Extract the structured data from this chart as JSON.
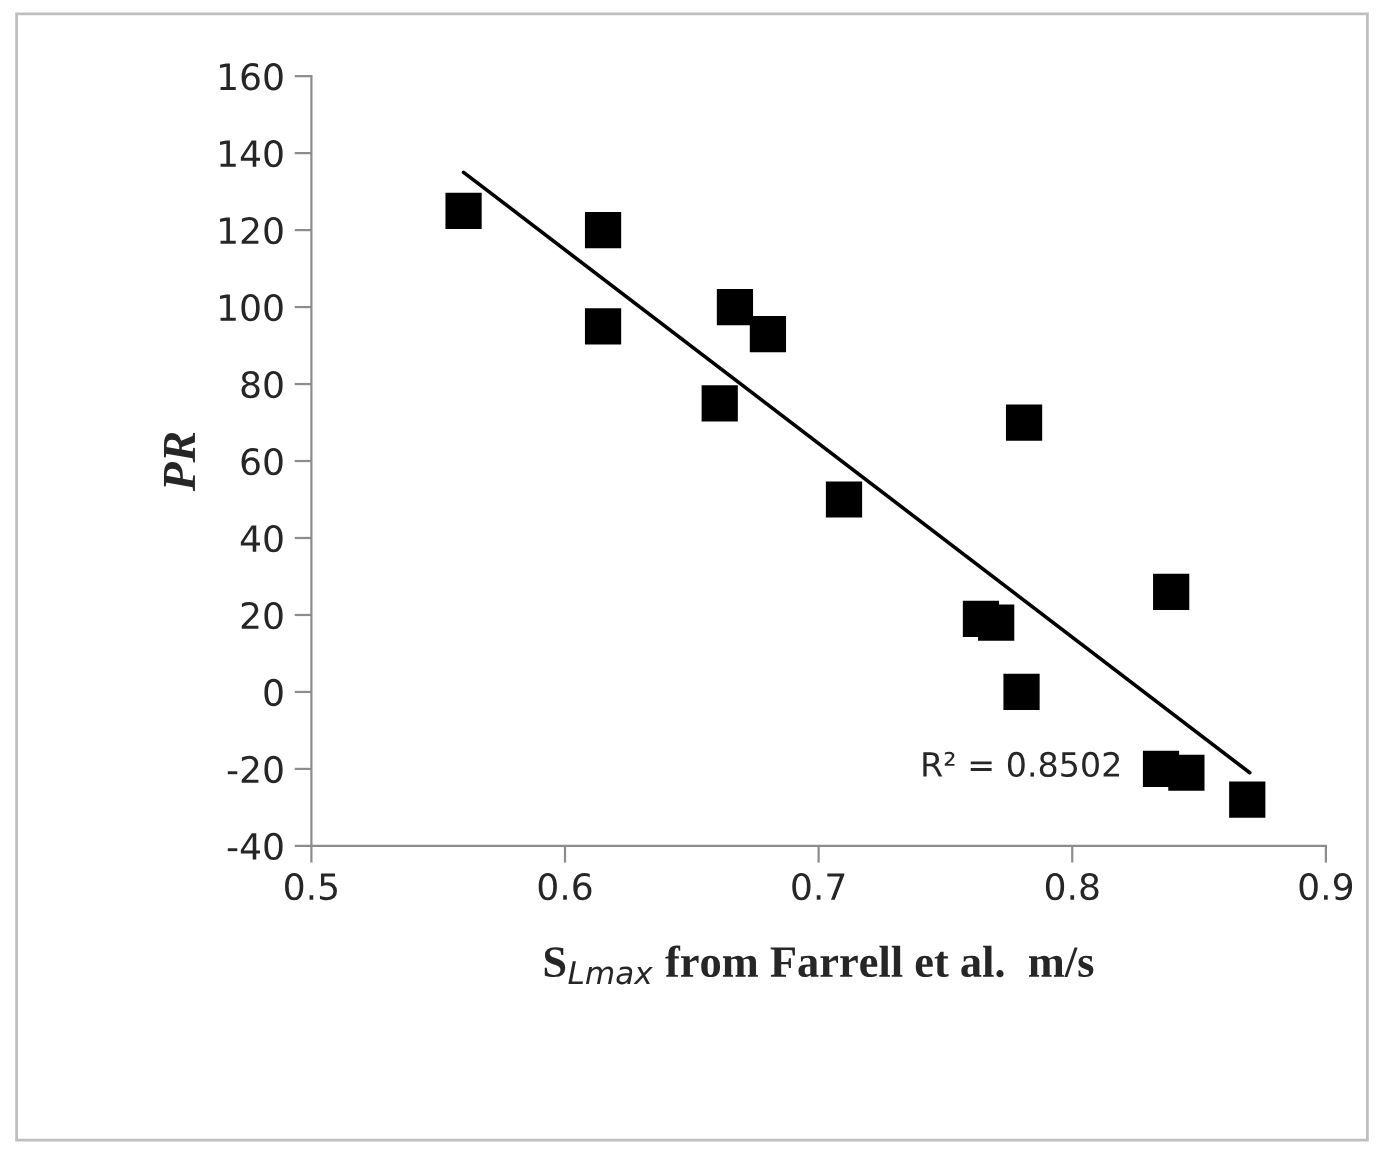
{
  "chart_data": {
    "type": "scatter",
    "xlabel": "S$_{Lmax}$ from Farrell et al.  m/s",
    "ylabel": "PR",
    "xlim": [
      0.5,
      0.9
    ],
    "xticks": [
      0.5,
      0.6,
      0.7,
      0.8,
      0.9
    ],
    "ylim": [
      -40,
      160
    ],
    "yticks": [
      -40,
      -20,
      0,
      20,
      40,
      60,
      80,
      100,
      120,
      140,
      160
    ],
    "grid": false,
    "legend": false,
    "marker": "square",
    "series": [
      {
        "color": "#000000",
        "x": [
          0.56,
          0.615,
          0.615,
          0.667,
          0.68,
          0.661,
          0.71,
          0.781,
          0.764,
          0.77,
          0.78,
          0.839,
          0.835,
          0.845,
          0.869
        ],
        "values": [
          125,
          120,
          95,
          100,
          93,
          75,
          50,
          70,
          19,
          18,
          0,
          26,
          -20,
          -21,
          -28
        ]
      },
      {
        "type": "line",
        "color": "#000000",
        "line_style": "solid",
        "marker": "none",
        "x": [
          0.56,
          0.87
        ],
        "values": [
          135,
          -21
        ]
      }
    ],
    "annotations": [
      "R² = 0.8502"
    ]
  }
}
